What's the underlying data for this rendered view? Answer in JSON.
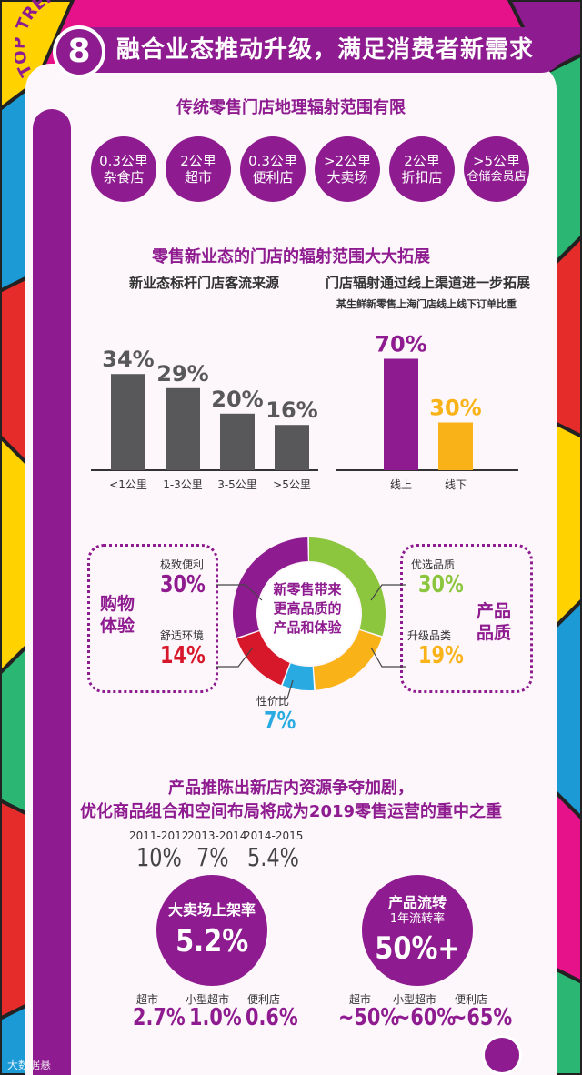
{
  "header": {
    "badge_number": "8",
    "trend_text": "TOP TREND",
    "title": "融合业态推动升级，满足消费者新需求"
  },
  "section1": {
    "title": "传统零售门店地理辐射范围有限",
    "circles": [
      {
        "line1": "0.3公里",
        "line2": "杂食店"
      },
      {
        "line1": "2公里",
        "line2": "超市"
      },
      {
        "line1": "0.3公里",
        "line2": "便利店"
      },
      {
        "line1": ">2公里",
        "line2": "大卖场"
      },
      {
        "line1": "2公里",
        "line2": "折扣店"
      },
      {
        "line1": ">5公里",
        "line2": "仓储会员店"
      }
    ]
  },
  "section2": {
    "title": "零售新业态的门店的辐射范围大大拓展",
    "left_title": "新业态标杆门店客流来源",
    "right_title": "门店辐射通过线上渠道进一步拓展",
    "right_note": "某生鲜新零售上海门店线上线下订单比重"
  },
  "chart_data": [
    {
      "type": "bar",
      "title": "新业态标杆门店客流来源",
      "categories": [
        "<1公里",
        "1-3公里",
        "3-5公里",
        ">5公里"
      ],
      "values": [
        34,
        29,
        20,
        16
      ],
      "value_labels": [
        "34%",
        "29%",
        "20%",
        "16%"
      ],
      "unit": "%",
      "colors": [
        "#58585a"
      ]
    },
    {
      "type": "bar",
      "title": "门店辐射通过线上渠道进一步拓展",
      "categories": [
        "线上",
        "线下"
      ],
      "values": [
        70,
        30
      ],
      "value_labels": [
        "70%",
        "30%"
      ],
      "unit": "%",
      "colors": [
        "#8e1b8f",
        "#f9b218"
      ]
    },
    {
      "type": "pie",
      "title": "新零售带来更高品质的产品和体验",
      "categories": [
        "优选品质",
        "升级品类",
        "性价比",
        "舒适环境",
        "极致便利"
      ],
      "values": [
        30,
        19,
        7,
        14,
        30
      ],
      "colors": [
        "#8cc63f",
        "#f9b218",
        "#29abe2",
        "#d7182a",
        "#8e1b8f"
      ]
    }
  ],
  "section3": {
    "center_text": [
      "新零售带来",
      "更高品质的",
      "产品和体验"
    ],
    "left_group": "购物体验",
    "left_group_lines": [
      "购物",
      "体验"
    ],
    "right_group_lines": [
      "产品",
      "品质"
    ],
    "items": {
      "convenience": {
        "label": "极致便利",
        "value": "30%"
      },
      "environment": {
        "label": "舒适环境",
        "value": "14%"
      },
      "quality": {
        "label": "优选品质",
        "value": "30%"
      },
      "category": {
        "label": "升级品类",
        "value": "19%"
      },
      "value": {
        "label": "性价比",
        "value": "7%"
      }
    }
  },
  "section4": {
    "title_line1": "产品推陈出新店内资源争夺加剧，",
    "title_line2": "优化商品组合和空间布局将成为2019零售运营的重中之重",
    "years": [
      {
        "period": "2011-2012",
        "value": "10%"
      },
      {
        "period": "2013-2014",
        "value": "7%"
      },
      {
        "period": "2014-2015",
        "value": "5.4%"
      }
    ],
    "left_circle": {
      "label": "大卖场上架率",
      "value": "5.2%"
    },
    "right_circle": {
      "label1": "产品流转",
      "label2": "1年流转率",
      "value": "50%+"
    },
    "left_formats": [
      {
        "label": "超市",
        "value": "2.7%"
      },
      {
        "label": "小型超市",
        "value": "1.0%"
      },
      {
        "label": "便利店",
        "value": "0.6%"
      }
    ],
    "right_formats": [
      {
        "label": "超市",
        "value": "~50%"
      },
      {
        "label": "小型超市",
        "value": "~60%"
      },
      {
        "label": "便利店",
        "value": "~65%"
      }
    ]
  },
  "watermark": "大数据悬"
}
